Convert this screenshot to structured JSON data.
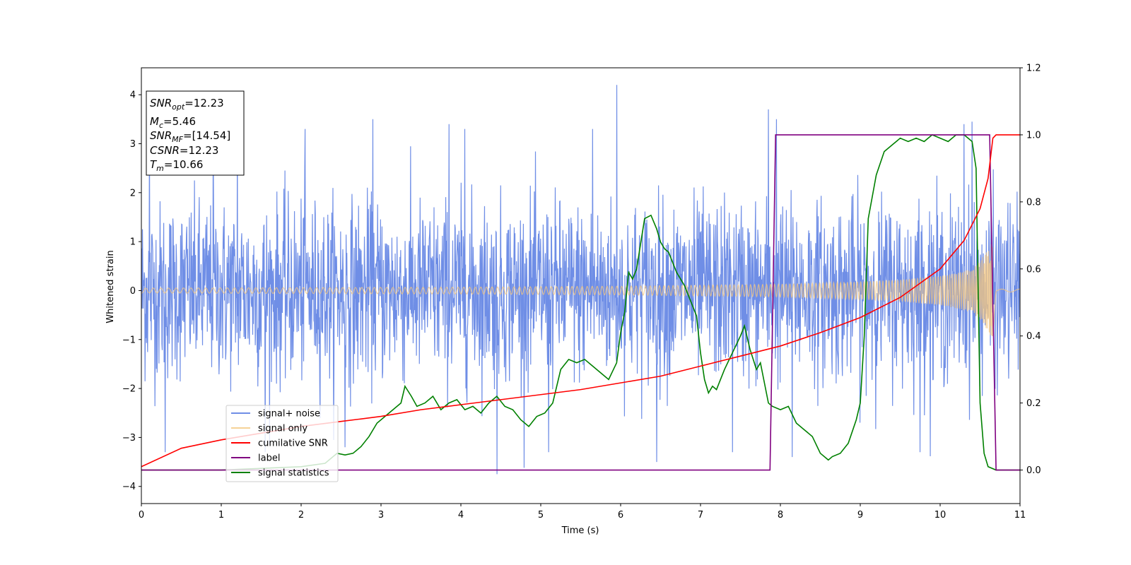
{
  "chart_data": {
    "type": "line",
    "xlabel": "Time (s)",
    "ylabel": "Whitened strain",
    "xlim": [
      0,
      11
    ],
    "ylim": [
      -4.35,
      4.55
    ],
    "y2lim": [
      -0.1,
      1.2
    ],
    "x_ticks": [
      0,
      1,
      2,
      3,
      4,
      5,
      6,
      7,
      8,
      9,
      10,
      11
    ],
    "y_ticks": [
      -4,
      -3,
      -2,
      -1,
      0,
      1,
      2,
      3,
      4
    ],
    "y2_ticks": [
      "0.0",
      "0.2",
      "0.4",
      "0.6",
      "0.8",
      "1.0",
      "1.2"
    ],
    "grid": false,
    "legend_placement": "lower-left",
    "info_box": {
      "lines": [
        {
          "name": "SNR",
          "sub": "opt",
          "value": "=12.23"
        },
        {
          "name": "M",
          "sub": "c",
          "value": "=5.46"
        },
        {
          "name": "SNR",
          "sub": "MF",
          "value": "=[14.54]"
        },
        {
          "name": "CSNR",
          "sub": "",
          "value": "=12.23"
        },
        {
          "name": "T",
          "sub": "m",
          "value": "=10.66"
        }
      ]
    },
    "series": [
      {
        "name": "signal+ noise",
        "color": "#6f8ee6",
        "axis": "left",
        "noise_std": 1.0,
        "spike_times": [
          0.1,
          0.3,
          0.9,
          1.2,
          1.55,
          2.05,
          2.55,
          2.9,
          3.85,
          4.05,
          4.45,
          5.1,
          5.65,
          5.95,
          6.45,
          7.4,
          7.85,
          7.95,
          8.15,
          9.75,
          10.3,
          10.4
        ],
        "spike_values": [
          3.3,
          -3.3,
          3.3,
          3.3,
          -3.3,
          3.3,
          -3.2,
          3.5,
          3.4,
          3.3,
          -3.75,
          -3.3,
          3.3,
          4.2,
          -3.5,
          -3.3,
          3.7,
          3.5,
          -3.4,
          -3.3,
          3.4,
          3.45
        ]
      },
      {
        "name": "signal only",
        "color": "#f5c77e",
        "axis": "left",
        "envelope_t": [
          0,
          2,
          4,
          6,
          7,
          8,
          9,
          9.5,
          10,
          10.2,
          10.4,
          10.5,
          10.6,
          10.66,
          10.7,
          11
        ],
        "envelope_a": [
          0.05,
          0.06,
          0.07,
          0.09,
          0.11,
          0.13,
          0.18,
          0.22,
          0.3,
          0.36,
          0.45,
          0.6,
          0.85,
          1.0,
          0.03,
          0.03
        ]
      },
      {
        "name": "cumilative SNR",
        "color": "#ff0000",
        "axis": "right",
        "x": [
          0,
          0.5,
          1,
          1.5,
          2,
          2.5,
          3,
          3.5,
          4,
          4.5,
          5,
          5.5,
          6,
          6.5,
          7,
          7.5,
          8,
          8.5,
          9,
          9.5,
          10,
          10.3,
          10.5,
          10.6,
          10.66,
          10.7,
          11
        ],
        "y": [
          0.01,
          0.065,
          0.09,
          0.11,
          0.13,
          0.145,
          0.16,
          0.18,
          0.195,
          0.21,
          0.225,
          0.24,
          0.26,
          0.28,
          0.31,
          0.34,
          0.37,
          0.41,
          0.455,
          0.515,
          0.6,
          0.685,
          0.78,
          0.87,
          0.99,
          1.0,
          1.0
        ]
      },
      {
        "name": "label",
        "color": "#800080",
        "axis": "right",
        "x": [
          0,
          7.87,
          7.94,
          10.62,
          10.7,
          11
        ],
        "y": [
          0,
          0,
          1,
          1,
          0,
          0
        ]
      },
      {
        "name": "signal statistics",
        "color": "#008000",
        "axis": "right",
        "x": [
          0,
          1,
          2,
          2.3,
          2.45,
          2.55,
          2.65,
          2.75,
          2.85,
          2.95,
          3.05,
          3.15,
          3.2,
          3.25,
          3.3,
          3.38,
          3.45,
          3.55,
          3.65,
          3.75,
          3.85,
          3.95,
          4.05,
          4.15,
          4.25,
          4.35,
          4.45,
          4.55,
          4.65,
          4.75,
          4.85,
          4.95,
          5.05,
          5.15,
          5.25,
          5.35,
          5.45,
          5.55,
          5.65,
          5.75,
          5.85,
          5.95,
          6.0,
          6.05,
          6.1,
          6.15,
          6.2,
          6.3,
          6.38,
          6.45,
          6.5,
          6.55,
          6.6,
          6.65,
          6.7,
          6.8,
          6.9,
          6.95,
          7.0,
          7.05,
          7.1,
          7.15,
          7.2,
          7.3,
          7.4,
          7.5,
          7.55,
          7.62,
          7.7,
          7.75,
          7.85,
          7.9,
          8.0,
          8.1,
          8.2,
          8.3,
          8.4,
          8.5,
          8.6,
          8.65,
          8.75,
          8.85,
          8.95,
          9.0,
          9.05,
          9.1,
          9.2,
          9.3,
          9.4,
          9.5,
          9.6,
          9.7,
          9.8,
          9.9,
          10.0,
          10.1,
          10.2,
          10.3,
          10.35,
          10.4,
          10.45,
          10.5,
          10.55,
          10.6,
          10.7,
          10.8,
          11
        ],
        "y": [
          0.0,
          0.0,
          0.01,
          0.02,
          0.05,
          0.045,
          0.05,
          0.07,
          0.1,
          0.14,
          0.16,
          0.18,
          0.19,
          0.2,
          0.25,
          0.22,
          0.19,
          0.2,
          0.22,
          0.18,
          0.2,
          0.21,
          0.18,
          0.19,
          0.17,
          0.2,
          0.22,
          0.19,
          0.18,
          0.15,
          0.13,
          0.16,
          0.17,
          0.2,
          0.3,
          0.33,
          0.32,
          0.33,
          0.31,
          0.29,
          0.27,
          0.32,
          0.41,
          0.47,
          0.59,
          0.57,
          0.6,
          0.75,
          0.76,
          0.72,
          0.68,
          0.66,
          0.65,
          0.62,
          0.59,
          0.55,
          0.49,
          0.46,
          0.35,
          0.27,
          0.23,
          0.25,
          0.24,
          0.3,
          0.35,
          0.4,
          0.43,
          0.36,
          0.3,
          0.32,
          0.2,
          0.19,
          0.18,
          0.19,
          0.14,
          0.12,
          0.1,
          0.05,
          0.03,
          0.04,
          0.05,
          0.08,
          0.15,
          0.2,
          0.4,
          0.75,
          0.88,
          0.95,
          0.97,
          0.99,
          0.98,
          0.99,
          0.98,
          1.0,
          0.99,
          0.98,
          1.0,
          1.0,
          0.99,
          0.98,
          0.9,
          0.2,
          0.05,
          0.01,
          0.0,
          0.0,
          0.0
        ]
      }
    ]
  }
}
